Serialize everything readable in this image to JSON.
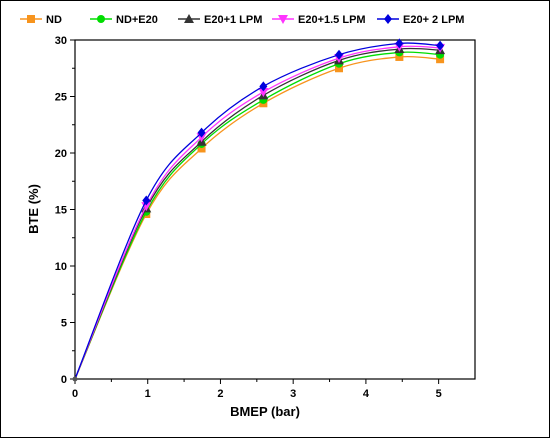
{
  "chart_data": {
    "type": "line",
    "xlabel": "BMEP (bar)",
    "ylabel": "BTE (%)",
    "xlim": [
      0,
      5.5
    ],
    "ylim": [
      0,
      30
    ],
    "x_ticks": [
      "0",
      "1",
      "2",
      "3",
      "4",
      "5"
    ],
    "y_ticks": [
      "0",
      "5",
      "10",
      "15",
      "20",
      "25",
      "30"
    ],
    "grid": false,
    "legend_position": "top",
    "x": [
      0,
      0.98,
      1.74,
      2.59,
      3.63,
      4.46,
      5.02
    ],
    "series": [
      {
        "name": "ND",
        "color": "#f7941d",
        "marker": "square",
        "values": [
          0,
          14.6,
          20.4,
          24.4,
          27.5,
          28.5,
          28.3
        ]
      },
      {
        "name": "ND+E20",
        "color": "#00dd00",
        "marker": "circle",
        "values": [
          0,
          14.8,
          20.8,
          24.7,
          27.9,
          28.9,
          28.7
        ]
      },
      {
        "name": "E20+1 LPM",
        "color": "#333333",
        "marker": "triangle-up",
        "values": [
          0,
          15.1,
          21.0,
          25.1,
          28.2,
          29.2,
          29.1
        ]
      },
      {
        "name": "E20+1.5 LPM",
        "color": "#ff33ff",
        "marker": "triangle-down",
        "values": [
          0,
          15.3,
          21.4,
          25.4,
          28.4,
          29.4,
          29.3
        ]
      },
      {
        "name": "E20+ 2 LPM",
        "color": "#0000dd",
        "marker": "diamond",
        "values": [
          0,
          15.8,
          21.8,
          25.9,
          28.7,
          29.7,
          29.5
        ]
      }
    ]
  }
}
